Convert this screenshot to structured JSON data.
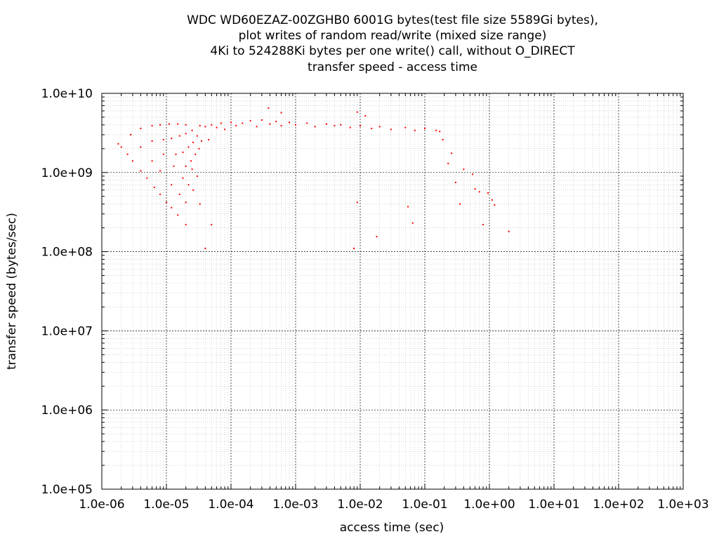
{
  "chart_data": {
    "type": "scatter",
    "title_lines": [
      "WDC WD60EZAZ-00ZGHB0 6001G bytes(test file size 5589Gi bytes),",
      "plot writes of random read/write (mixed size range)",
      "4Ki to 524288Ki bytes per one write() call, without O_DIRECT",
      "transfer speed - access time"
    ],
    "xlabel": "access time (sec)",
    "ylabel": "transfer speed (bytes/sec)",
    "x_scale": "log",
    "y_scale": "log",
    "xlim": [
      1e-06,
      1000.0
    ],
    "ylim": [
      100000.0,
      10000000000.0
    ],
    "x_ticks": [
      {
        "value": 1e-06,
        "label": "1.0e-06"
      },
      {
        "value": 1e-05,
        "label": "1.0e-05"
      },
      {
        "value": 0.0001,
        "label": "1.0e-04"
      },
      {
        "value": 0.001,
        "label": "1.0e-03"
      },
      {
        "value": 0.01,
        "label": "1.0e-02"
      },
      {
        "value": 0.1,
        "label": "1.0e-01"
      },
      {
        "value": 1.0,
        "label": "1.0e+00"
      },
      {
        "value": 10.0,
        "label": "1.0e+01"
      },
      {
        "value": 100.0,
        "label": "1.0e+02"
      },
      {
        "value": 1000.0,
        "label": "1.0e+03"
      }
    ],
    "y_ticks": [
      {
        "value": 10000000000.0,
        "label": "1.0e+10"
      },
      {
        "value": 1000000000.0,
        "label": "1.0e+09"
      },
      {
        "value": 100000000.0,
        "label": "1.0e+08"
      },
      {
        "value": 10000000.0,
        "label": "1.0e+07"
      },
      {
        "value": 1000000.0,
        "label": "1.0e+06"
      },
      {
        "value": 100000.0,
        "label": "1.0e+05"
      }
    ],
    "grid": true,
    "minor_grid": true,
    "marker_color": "#ff0000",
    "series": [
      {
        "points": [
          [
            1.8e-06,
            2300000000.0
          ],
          [
            2e-06,
            2100000000.0
          ],
          [
            2.5e-06,
            1700000000.0
          ],
          [
            3e-06,
            1400000000.0
          ],
          [
            4e-06,
            1050000000.0
          ],
          [
            5e-06,
            850000000.0
          ],
          [
            6.5e-06,
            650000000.0
          ],
          [
            8e-06,
            530000000.0
          ],
          [
            1e-05,
            420000000.0
          ],
          [
            1.2e-05,
            360000000.0
          ],
          [
            1.5e-05,
            290000000.0
          ],
          [
            2e-05,
            220000000.0
          ],
          [
            2.8e-06,
            3000000000.0
          ],
          [
            4e-06,
            2100000000.0
          ],
          [
            6e-06,
            1400000000.0
          ],
          [
            8e-06,
            1050000000.0
          ],
          [
            1.2e-05,
            700000000.0
          ],
          [
            1.6e-05,
            530000000.0
          ],
          [
            2e-05,
            420000000.0
          ],
          [
            4e-06,
            3600000000.0
          ],
          [
            6e-06,
            2500000000.0
          ],
          [
            9e-06,
            1700000000.0
          ],
          [
            1.3e-05,
            1200000000.0
          ],
          [
            1.8e-05,
            850000000.0
          ],
          [
            2.2e-05,
            700000000.0
          ],
          [
            6e-06,
            3900000000.0
          ],
          [
            9e-06,
            2600000000.0
          ],
          [
            1.4e-05,
            1700000000.0
          ],
          [
            2e-05,
            1200000000.0
          ],
          [
            8e-06,
            4000000000.0
          ],
          [
            1.2e-05,
            2700000000.0
          ],
          [
            1.8e-05,
            1800000000.0
          ],
          [
            2.4e-05,
            1400000000.0
          ],
          [
            1.1e-05,
            4100000000.0
          ],
          [
            1.6e-05,
            2900000000.0
          ],
          [
            2.2e-05,
            2100000000.0
          ],
          [
            2.8e-05,
            1700000000.0
          ],
          [
            1.5e-05,
            4100000000.0
          ],
          [
            2e-05,
            3100000000.0
          ],
          [
            2.6e-05,
            2400000000.0
          ],
          [
            3.2e-05,
            2000000000.0
          ],
          [
            2e-05,
            4000000000.0
          ],
          [
            2.5e-05,
            3400000000.0
          ],
          [
            3e-05,
            2900000000.0
          ],
          [
            3.5e-05,
            2500000000.0
          ],
          [
            2.5e-05,
            1100000000.0
          ],
          [
            3e-05,
            900000000.0
          ],
          [
            2.6e-05,
            600000000.0
          ],
          [
            3.3e-05,
            400000000.0
          ],
          [
            3.3e-05,
            3900000000.0
          ],
          [
            4e-05,
            3800000000.0
          ],
          [
            4.5e-05,
            2600000000.0
          ],
          [
            5e-05,
            4000000000.0
          ],
          [
            6e-05,
            3700000000.0
          ],
          [
            7e-05,
            4200000000.0
          ],
          [
            8e-05,
            3500000000.0
          ],
          [
            0.0001,
            4300000000.0
          ],
          [
            0.00012,
            3900000000.0
          ],
          [
            0.00015,
            4200000000.0
          ],
          [
            0.0002,
            4500000000.0
          ],
          [
            0.00025,
            3800000000.0
          ],
          [
            0.0003,
            4600000000.0
          ],
          [
            0.0004,
            4100000000.0
          ],
          [
            0.0005,
            4400000000.0
          ],
          [
            0.0006,
            3900000000.0
          ],
          [
            0.0008,
            4300000000.0
          ],
          [
            0.001,
            4000000000.0
          ],
          [
            0.0015,
            4200000000.0
          ],
          [
            0.002,
            3800000000.0
          ],
          [
            0.003,
            4100000000.0
          ],
          [
            0.004,
            3900000000.0
          ],
          [
            0.005,
            4000000000.0
          ],
          [
            0.007,
            3700000000.0
          ],
          [
            0.01,
            3900000000.0
          ],
          [
            0.015,
            3600000000.0
          ],
          [
            0.02,
            3800000000.0
          ],
          [
            0.03,
            3500000000.0
          ],
          [
            0.05,
            3700000000.0
          ],
          [
            0.07,
            3400000000.0
          ],
          [
            0.1,
            3600000000.0
          ],
          [
            0.15,
            3400000000.0
          ],
          [
            0.17,
            3300000000.0
          ],
          [
            4e-05,
            110000000.0
          ],
          [
            5e-05,
            220000000.0
          ],
          [
            0.00038,
            6500000000.0
          ],
          [
            0.0006,
            5700000000.0
          ],
          [
            0.009,
            5800000000.0
          ],
          [
            0.012,
            5200000000.0
          ],
          [
            0.008,
            110000000.0
          ],
          [
            0.018,
            155000000.0
          ],
          [
            0.009,
            420000000.0
          ],
          [
            0.055,
            370000000.0
          ],
          [
            0.065,
            230000000.0
          ],
          [
            0.19,
            2600000000.0
          ],
          [
            0.23,
            1300000000.0
          ],
          [
            0.26,
            1750000000.0
          ],
          [
            0.3,
            750000000.0
          ],
          [
            0.35,
            400000000.0
          ],
          [
            0.4,
            1100000000.0
          ],
          [
            0.55,
            950000000.0
          ],
          [
            0.6,
            620000000.0
          ],
          [
            0.7,
            570000000.0
          ],
          [
            0.8,
            220000000.0
          ],
          [
            0.95,
            550000000.0
          ],
          [
            1.1,
            450000000.0
          ],
          [
            1.2,
            390000000.0
          ],
          [
            2.0,
            180000000.0
          ]
        ]
      }
    ]
  }
}
